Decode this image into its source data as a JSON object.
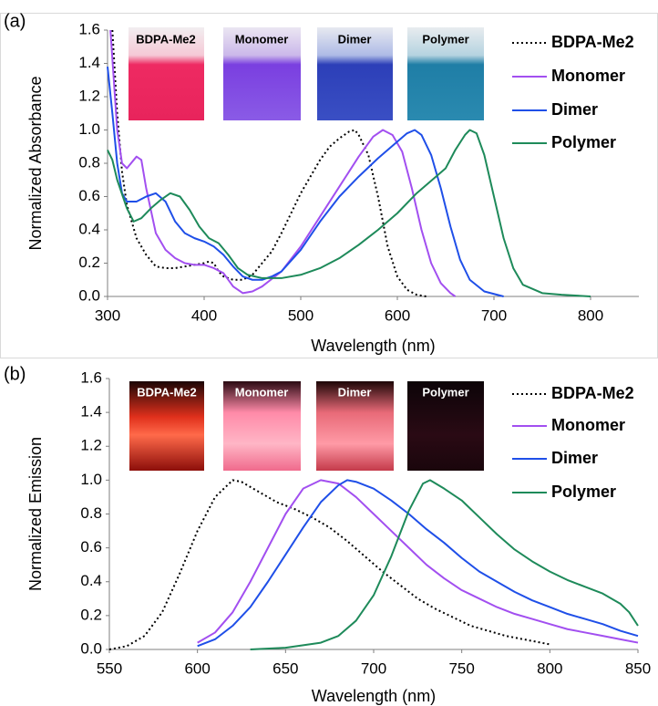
{
  "chart_data": [
    {
      "type": "line",
      "panel_label": "(a)",
      "x_label": "Wavelength (nm)",
      "y_label": "Normalized Absorbance",
      "xlim": [
        300,
        850
      ],
      "xticks": [
        300,
        400,
        500,
        600,
        700,
        800
      ],
      "ylim": [
        0,
        1.6
      ],
      "yticks": [
        {
          "value": 0,
          "label": "0.0"
        },
        0.2,
        0.4,
        0.6,
        0.8,
        {
          "value": 1,
          "label": "1.0"
        },
        1.2,
        1.4,
        1.6
      ],
      "photo_labels": [
        "BDPA-Me2",
        "Monomer",
        "Dimer",
        "Polymer"
      ],
      "series": [
        {
          "name": "BDPA-Me2",
          "color": "#000000",
          "line_style": "dotted",
          "x": [
            305,
            310,
            315,
            320,
            330,
            340,
            350,
            360,
            370,
            380,
            390,
            400,
            405,
            410,
            415,
            420,
            430,
            440,
            450,
            460,
            470,
            480,
            490,
            500,
            510,
            520,
            530,
            540,
            550,
            556,
            560,
            570,
            580,
            590,
            600,
            610,
            620,
            630
          ],
          "values": [
            1.6,
            1.1,
            0.75,
            0.55,
            0.35,
            0.25,
            0.18,
            0.17,
            0.17,
            0.18,
            0.19,
            0.2,
            0.21,
            0.2,
            0.15,
            0.12,
            0.1,
            0.1,
            0.13,
            0.2,
            0.27,
            0.38,
            0.5,
            0.62,
            0.72,
            0.82,
            0.9,
            0.95,
            0.99,
            1.0,
            0.97,
            0.85,
            0.6,
            0.3,
            0.12,
            0.04,
            0.01,
            0
          ]
        },
        {
          "name": "Monomer",
          "color": "#a24ff0",
          "line_style": "solid",
          "x": [
            303,
            310,
            315,
            320,
            330,
            335,
            340,
            350,
            360,
            370,
            380,
            390,
            400,
            410,
            420,
            430,
            440,
            450,
            460,
            480,
            500,
            520,
            540,
            560,
            575,
            585,
            595,
            605,
            615,
            625,
            635,
            645,
            655,
            660
          ],
          "values": [
            1.6,
            1.0,
            0.8,
            0.77,
            0.84,
            0.82,
            0.65,
            0.38,
            0.28,
            0.23,
            0.2,
            0.19,
            0.19,
            0.17,
            0.14,
            0.06,
            0.02,
            0.03,
            0.06,
            0.15,
            0.3,
            0.48,
            0.66,
            0.84,
            0.96,
            1.0,
            0.97,
            0.87,
            0.65,
            0.4,
            0.2,
            0.08,
            0.02,
            0
          ]
        },
        {
          "name": "Dimer",
          "color": "#1f4fe8",
          "line_style": "solid",
          "x": [
            300,
            305,
            310,
            315,
            320,
            330,
            340,
            350,
            360,
            370,
            380,
            390,
            400,
            410,
            420,
            430,
            440,
            450,
            460,
            470,
            480,
            500,
            520,
            540,
            560,
            580,
            600,
            610,
            618,
            625,
            635,
            645,
            655,
            665,
            675,
            690,
            710
          ],
          "values": [
            1.38,
            1.1,
            0.8,
            0.62,
            0.57,
            0.57,
            0.6,
            0.62,
            0.57,
            0.45,
            0.38,
            0.35,
            0.33,
            0.3,
            0.25,
            0.18,
            0.12,
            0.1,
            0.1,
            0.12,
            0.15,
            0.28,
            0.45,
            0.6,
            0.72,
            0.83,
            0.93,
            0.98,
            1.0,
            0.97,
            0.85,
            0.65,
            0.42,
            0.22,
            0.1,
            0.03,
            0
          ]
        },
        {
          "name": "Polymer",
          "color": "#1e8a5a",
          "line_style": "solid",
          "x": [
            300,
            305,
            310,
            320,
            327,
            335,
            345,
            355,
            365,
            375,
            385,
            395,
            405,
            415,
            425,
            435,
            445,
            460,
            480,
            500,
            520,
            540,
            560,
            580,
            600,
            620,
            640,
            650,
            660,
            670,
            675,
            682,
            690,
            700,
            710,
            720,
            730,
            750,
            770,
            800
          ],
          "values": [
            0.88,
            0.82,
            0.7,
            0.53,
            0.45,
            0.47,
            0.53,
            0.58,
            0.62,
            0.6,
            0.52,
            0.42,
            0.35,
            0.32,
            0.25,
            0.17,
            0.13,
            0.11,
            0.11,
            0.13,
            0.17,
            0.23,
            0.31,
            0.4,
            0.5,
            0.62,
            0.72,
            0.77,
            0.88,
            0.97,
            1.0,
            0.98,
            0.85,
            0.6,
            0.35,
            0.17,
            0.07,
            0.02,
            0.01,
            0
          ]
        }
      ]
    },
    {
      "type": "line",
      "panel_label": "(b)",
      "x_label": "Wavelength (nm)",
      "y_label": "Normalized Emission",
      "xlim": [
        550,
        850
      ],
      "xticks": [
        550,
        600,
        650,
        700,
        750,
        800,
        850
      ],
      "ylim": [
        0,
        1.6
      ],
      "yticks": [
        {
          "value": 0,
          "label": "0.0"
        },
        0.2,
        0.4,
        0.6,
        0.8,
        {
          "value": 1,
          "label": "1.0"
        },
        1.2,
        1.4,
        1.6
      ],
      "photo_labels": [
        "BDPA-Me2",
        "Monomer",
        "Dimer",
        "Polymer"
      ],
      "series": [
        {
          "name": "BDPA-Me2",
          "color": "#000000",
          "line_style": "dotted",
          "x": [
            550,
            560,
            570,
            580,
            590,
            600,
            610,
            620,
            625,
            635,
            645,
            655,
            665,
            675,
            685,
            695,
            705,
            715,
            725,
            735,
            745,
            755,
            765,
            775,
            790,
            800
          ],
          "values": [
            0,
            0.02,
            0.08,
            0.22,
            0.45,
            0.7,
            0.9,
            1.0,
            0.99,
            0.93,
            0.87,
            0.83,
            0.78,
            0.72,
            0.64,
            0.55,
            0.46,
            0.38,
            0.3,
            0.24,
            0.19,
            0.14,
            0.11,
            0.08,
            0.05,
            0.03
          ]
        },
        {
          "name": "Monomer",
          "color": "#a24ff0",
          "line_style": "solid",
          "x": [
            600,
            610,
            620,
            630,
            640,
            650,
            660,
            670,
            680,
            690,
            700,
            710,
            720,
            730,
            740,
            750,
            760,
            770,
            780,
            790,
            800,
            810,
            820,
            830,
            840,
            850
          ],
          "values": [
            0.04,
            0.1,
            0.22,
            0.4,
            0.6,
            0.8,
            0.95,
            1.0,
            0.98,
            0.9,
            0.8,
            0.7,
            0.6,
            0.5,
            0.42,
            0.35,
            0.3,
            0.25,
            0.21,
            0.18,
            0.15,
            0.12,
            0.1,
            0.08,
            0.06,
            0.04
          ]
        },
        {
          "name": "Dimer",
          "color": "#1f4fe8",
          "line_style": "solid",
          "x": [
            600,
            610,
            620,
            630,
            640,
            650,
            660,
            670,
            680,
            685,
            690,
            700,
            710,
            720,
            730,
            740,
            750,
            760,
            770,
            780,
            790,
            800,
            810,
            820,
            830,
            840,
            850
          ],
          "values": [
            0.02,
            0.06,
            0.14,
            0.25,
            0.4,
            0.56,
            0.72,
            0.87,
            0.97,
            1.0,
            0.99,
            0.95,
            0.88,
            0.8,
            0.71,
            0.63,
            0.54,
            0.46,
            0.4,
            0.34,
            0.29,
            0.25,
            0.21,
            0.18,
            0.15,
            0.11,
            0.08
          ]
        },
        {
          "name": "Polymer",
          "color": "#1e8a5a",
          "line_style": "solid",
          "x": [
            630,
            650,
            670,
            680,
            690,
            700,
            710,
            720,
            728,
            732,
            740,
            750,
            760,
            770,
            780,
            790,
            800,
            810,
            820,
            830,
            840,
            845,
            850
          ],
          "values": [
            0,
            0.01,
            0.04,
            0.08,
            0.17,
            0.32,
            0.55,
            0.82,
            0.98,
            1.0,
            0.95,
            0.88,
            0.78,
            0.68,
            0.59,
            0.52,
            0.46,
            0.41,
            0.37,
            0.33,
            0.27,
            0.22,
            0.14
          ]
        }
      ]
    }
  ]
}
